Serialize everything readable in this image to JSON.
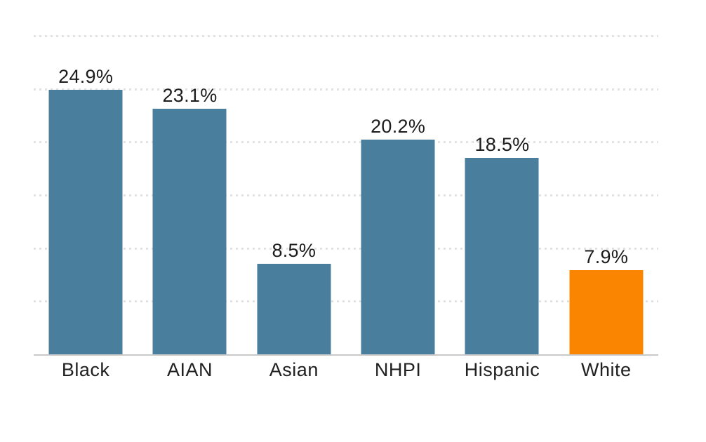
{
  "figure": {
    "background": "#FFFFFF"
  },
  "chart_data": {
    "type": "bar",
    "title": "",
    "xlabel": "",
    "ylabel": "",
    "categories": [
      "Black",
      "AIAN",
      "Asian",
      "NHPI",
      "Hispanic",
      "White"
    ],
    "values": [
      24.9,
      23.1,
      8.5,
      20.2,
      18.5,
      7.9
    ],
    "value_labels": [
      "24.9%",
      "23.1%",
      "8.5%",
      "20.2%",
      "18.5%",
      "7.9%"
    ],
    "bar_colors": [
      "#4A7E9D",
      "#4A7E9D",
      "#4A7E9D",
      "#4A7E9D",
      "#4A7E9D",
      "#F98500"
    ],
    "highlight_category": "White",
    "ylim": [
      0,
      30
    ],
    "gridlines": [
      5,
      10,
      15,
      20,
      25,
      30
    ],
    "grid": "horizontal dotted lines, no y-axis tick labels",
    "legend": "none",
    "colors": {
      "bar_default": "#4A7E9D",
      "bar_highlight": "#F98500",
      "gridline": "#E2E2E2",
      "axis_line": "#C9C9C9",
      "value_label_text": "#1C1C1C",
      "axis_label_text": "#212121"
    }
  }
}
